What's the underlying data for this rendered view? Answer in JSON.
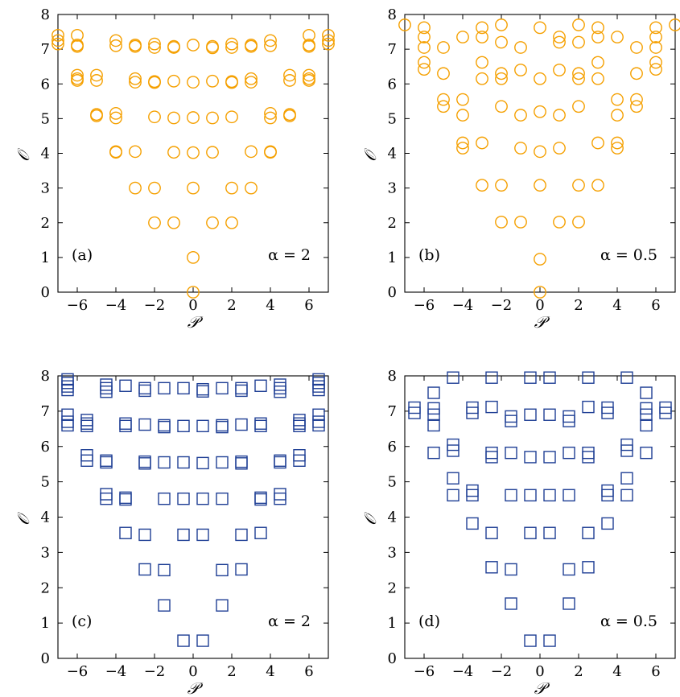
{
  "figure": {
    "colors": {
      "circle": "#f5a000",
      "square": "#1f3f95"
    }
  },
  "chart_data": [
    {
      "id": "a",
      "type": "scatter",
      "marker": "circle",
      "panel_label": "(a)",
      "annotation": "α = 2",
      "xlabel": "𝒫",
      "ylabel": "𝒪",
      "xlim": [
        -7,
        7
      ],
      "ylim": [
        0,
        8
      ],
      "xticks": [
        -6,
        -4,
        -2,
        0,
        2,
        4,
        6
      ],
      "yticks": [
        0,
        1,
        2,
        3,
        4,
        5,
        6,
        7,
        8
      ],
      "points": [
        [
          -7,
          7.4
        ],
        [
          -7,
          7.25
        ],
        [
          -7,
          7.15
        ],
        [
          -6,
          7.4
        ],
        [
          -6,
          7.12
        ],
        [
          -6,
          7.08
        ],
        [
          -4,
          7.25
        ],
        [
          -4,
          7.1
        ],
        [
          -3,
          7.12
        ],
        [
          -3,
          7.08
        ],
        [
          -2,
          7.15
        ],
        [
          -2,
          7.05
        ],
        [
          -1,
          7.08
        ],
        [
          -1,
          7.05
        ],
        [
          0,
          7.12
        ],
        [
          1,
          7.08
        ],
        [
          1,
          7.04
        ],
        [
          2,
          7.15
        ],
        [
          2,
          7.05
        ],
        [
          3,
          7.12
        ],
        [
          3,
          7.08
        ],
        [
          4,
          7.25
        ],
        [
          4,
          7.1
        ],
        [
          6,
          7.4
        ],
        [
          6,
          7.12
        ],
        [
          6,
          7.08
        ],
        [
          7,
          7.4
        ],
        [
          7,
          7.25
        ],
        [
          7,
          7.15
        ],
        [
          -6,
          6.25
        ],
        [
          -6,
          6.15
        ],
        [
          -6,
          6.1
        ],
        [
          -5,
          6.25
        ],
        [
          -5,
          6.1
        ],
        [
          -3,
          6.15
        ],
        [
          -3,
          6.05
        ],
        [
          -2,
          6.07
        ],
        [
          -2,
          6.04
        ],
        [
          -1,
          6.08
        ],
        [
          0,
          6.05
        ],
        [
          1,
          6.08
        ],
        [
          2,
          6.07
        ],
        [
          2,
          6.04
        ],
        [
          3,
          6.15
        ],
        [
          3,
          6.05
        ],
        [
          5,
          6.25
        ],
        [
          5,
          6.1
        ],
        [
          6,
          6.25
        ],
        [
          6,
          6.15
        ],
        [
          6,
          6.1
        ],
        [
          -5,
          5.12
        ],
        [
          -5,
          5.08
        ],
        [
          -4,
          5.15
        ],
        [
          -4,
          5.02
        ],
        [
          -2,
          5.05
        ],
        [
          -1,
          5.02
        ],
        [
          0,
          5.03
        ],
        [
          1,
          5.02
        ],
        [
          2,
          5.05
        ],
        [
          4,
          5.15
        ],
        [
          4,
          5.02
        ],
        [
          5,
          5.12
        ],
        [
          5,
          5.08
        ],
        [
          -4,
          4.05
        ],
        [
          -4,
          4.03
        ],
        [
          -3,
          4.05
        ],
        [
          -1,
          4.03
        ],
        [
          0,
          4.02
        ],
        [
          1,
          4.03
        ],
        [
          3,
          4.05
        ],
        [
          4,
          4.05
        ],
        [
          4,
          4.03
        ],
        [
          -3,
          3.0
        ],
        [
          -2,
          3.0
        ],
        [
          0,
          3.0
        ],
        [
          2,
          3.0
        ],
        [
          3,
          3.0
        ],
        [
          -2,
          2.0
        ],
        [
          -1,
          2.0
        ],
        [
          1,
          2.0
        ],
        [
          2,
          2.0
        ],
        [
          0,
          1.0
        ],
        [
          0,
          0.0
        ]
      ]
    },
    {
      "id": "b",
      "type": "scatter",
      "marker": "circle",
      "panel_label": "(b)",
      "annotation": "α = 0.5",
      "xlabel": "𝒫",
      "ylabel": "𝒪",
      "xlim": [
        -7,
        7
      ],
      "ylim": [
        0,
        8
      ],
      "xticks": [
        -6,
        -4,
        -2,
        0,
        2,
        4,
        6
      ],
      "yticks": [
        0,
        1,
        2,
        3,
        4,
        5,
        6,
        7,
        8
      ],
      "points": [
        [
          -7,
          7.7
        ],
        [
          -6,
          7.62
        ],
        [
          -6,
          7.35
        ],
        [
          -6,
          7.05
        ],
        [
          -6,
          6.62
        ],
        [
          -6,
          6.42
        ],
        [
          -5,
          7.05
        ],
        [
          -5,
          6.3
        ],
        [
          -4,
          7.35
        ],
        [
          -3,
          7.62
        ],
        [
          -3,
          7.35
        ],
        [
          -3,
          6.62
        ],
        [
          -3,
          6.15
        ],
        [
          -2,
          7.7
        ],
        [
          -2,
          7.2
        ],
        [
          -2,
          6.3
        ],
        [
          -2,
          6.15
        ],
        [
          -1,
          7.05
        ],
        [
          -1,
          6.4
        ],
        [
          0,
          7.62
        ],
        [
          0,
          6.15
        ],
        [
          1,
          7.35
        ],
        [
          1,
          7.2
        ],
        [
          1,
          6.4
        ],
        [
          2,
          7.7
        ],
        [
          2,
          7.2
        ],
        [
          2,
          6.3
        ],
        [
          2,
          6.15
        ],
        [
          3,
          7.62
        ],
        [
          3,
          7.35
        ],
        [
          3,
          6.62
        ],
        [
          3,
          6.15
        ],
        [
          4,
          7.35
        ],
        [
          5,
          7.05
        ],
        [
          5,
          6.3
        ],
        [
          6,
          7.62
        ],
        [
          6,
          7.35
        ],
        [
          6,
          7.05
        ],
        [
          6,
          6.62
        ],
        [
          6,
          6.42
        ],
        [
          7,
          7.7
        ],
        [
          -5,
          5.55
        ],
        [
          -5,
          5.35
        ],
        [
          -4,
          5.55
        ],
        [
          -4,
          5.1
        ],
        [
          -2,
          5.35
        ],
        [
          -1,
          5.1
        ],
        [
          0,
          5.2
        ],
        [
          1,
          5.1
        ],
        [
          2,
          5.35
        ],
        [
          4,
          5.55
        ],
        [
          4,
          5.1
        ],
        [
          5,
          5.55
        ],
        [
          5,
          5.35
        ],
        [
          -4,
          4.3
        ],
        [
          -4,
          4.15
        ],
        [
          -3,
          4.3
        ],
        [
          -1,
          4.15
        ],
        [
          0,
          4.05
        ],
        [
          1,
          4.15
        ],
        [
          3,
          4.3
        ],
        [
          4,
          4.3
        ],
        [
          4,
          4.15
        ],
        [
          -3,
          3.08
        ],
        [
          -2,
          3.08
        ],
        [
          0,
          3.08
        ],
        [
          2,
          3.08
        ],
        [
          3,
          3.08
        ],
        [
          -2,
          2.02
        ],
        [
          -1,
          2.02
        ],
        [
          1,
          2.02
        ],
        [
          2,
          2.02
        ],
        [
          0,
          0.95
        ],
        [
          0,
          0.0
        ]
      ]
    },
    {
      "id": "c",
      "type": "scatter",
      "marker": "square",
      "panel_label": "(c)",
      "annotation": "α = 2",
      "xlabel": "𝒫",
      "ylabel": "𝒪",
      "xlim": [
        -7,
        7
      ],
      "ylim": [
        0,
        8
      ],
      "xticks": [
        -6,
        -4,
        -2,
        0,
        2,
        4,
        6
      ],
      "yticks": [
        0,
        1,
        2,
        3,
        4,
        5,
        6,
        7,
        8
      ],
      "points": [
        [
          -6.5,
          7.9
        ],
        [
          -6.5,
          7.8
        ],
        [
          -6.5,
          7.7
        ],
        [
          -6.5,
          7.6
        ],
        [
          -4.5,
          7.75
        ],
        [
          -4.5,
          7.65
        ],
        [
          -4.5,
          7.55
        ],
        [
          -3.5,
          7.72
        ],
        [
          -2.5,
          7.65
        ],
        [
          -2.5,
          7.58
        ],
        [
          -1.5,
          7.65
        ],
        [
          -0.5,
          7.65
        ],
        [
          0.5,
          7.62
        ],
        [
          0.5,
          7.56
        ],
        [
          1.5,
          7.65
        ],
        [
          2.5,
          7.65
        ],
        [
          2.5,
          7.58
        ],
        [
          3.5,
          7.72
        ],
        [
          4.5,
          7.75
        ],
        [
          4.5,
          7.65
        ],
        [
          4.5,
          7.55
        ],
        [
          6.5,
          7.9
        ],
        [
          6.5,
          7.8
        ],
        [
          6.5,
          7.7
        ],
        [
          6.5,
          7.6
        ],
        [
          -6.5,
          6.9
        ],
        [
          -6.5,
          6.7
        ],
        [
          -6.5,
          6.6
        ],
        [
          -5.5,
          6.75
        ],
        [
          -5.5,
          6.65
        ],
        [
          -5.5,
          6.58
        ],
        [
          -3.5,
          6.65
        ],
        [
          -3.5,
          6.58
        ],
        [
          -2.5,
          6.62
        ],
        [
          -1.5,
          6.6
        ],
        [
          -1.5,
          6.55
        ],
        [
          -0.5,
          6.58
        ],
        [
          0.5,
          6.58
        ],
        [
          1.5,
          6.6
        ],
        [
          1.5,
          6.55
        ],
        [
          2.5,
          6.62
        ],
        [
          3.5,
          6.65
        ],
        [
          3.5,
          6.58
        ],
        [
          5.5,
          6.75
        ],
        [
          5.5,
          6.65
        ],
        [
          5.5,
          6.58
        ],
        [
          6.5,
          6.9
        ],
        [
          6.5,
          6.7
        ],
        [
          6.5,
          6.6
        ],
        [
          -5.5,
          5.75
        ],
        [
          -5.5,
          5.6
        ],
        [
          -4.5,
          5.6
        ],
        [
          -4.5,
          5.55
        ],
        [
          -2.5,
          5.57
        ],
        [
          -2.5,
          5.52
        ],
        [
          -1.5,
          5.55
        ],
        [
          -0.5,
          5.55
        ],
        [
          0.5,
          5.53
        ],
        [
          1.5,
          5.55
        ],
        [
          2.5,
          5.57
        ],
        [
          2.5,
          5.52
        ],
        [
          4.5,
          5.6
        ],
        [
          4.5,
          5.55
        ],
        [
          5.5,
          5.75
        ],
        [
          5.5,
          5.6
        ],
        [
          -4.5,
          4.65
        ],
        [
          -4.5,
          4.52
        ],
        [
          -3.5,
          4.55
        ],
        [
          -3.5,
          4.5
        ],
        [
          -1.5,
          4.52
        ],
        [
          -0.5,
          4.52
        ],
        [
          0.5,
          4.52
        ],
        [
          1.5,
          4.52
        ],
        [
          3.5,
          4.55
        ],
        [
          3.5,
          4.5
        ],
        [
          4.5,
          4.65
        ],
        [
          4.5,
          4.52
        ],
        [
          -3.5,
          3.55
        ],
        [
          -2.5,
          3.5
        ],
        [
          -0.5,
          3.5
        ],
        [
          0.5,
          3.5
        ],
        [
          2.5,
          3.5
        ],
        [
          3.5,
          3.55
        ],
        [
          -2.5,
          2.52
        ],
        [
          -1.5,
          2.5
        ],
        [
          1.5,
          2.5
        ],
        [
          2.5,
          2.52
        ],
        [
          -1.5,
          1.5
        ],
        [
          1.5,
          1.5
        ],
        [
          -0.5,
          0.5
        ],
        [
          0.5,
          0.5
        ]
      ]
    },
    {
      "id": "d",
      "type": "scatter",
      "marker": "square",
      "panel_label": "(d)",
      "annotation": "α = 0.5",
      "xlabel": "𝒫",
      "ylabel": "𝒪",
      "xlim": [
        -7,
        7
      ],
      "ylim": [
        0,
        8
      ],
      "xticks": [
        -6,
        -4,
        -2,
        0,
        2,
        4,
        6
      ],
      "yticks": [
        0,
        1,
        2,
        3,
        4,
        5,
        6,
        7,
        8
      ],
      "points": [
        [
          -4.5,
          7.95
        ],
        [
          -2.5,
          7.95
        ],
        [
          -0.5,
          7.95
        ],
        [
          0.5,
          7.95
        ],
        [
          2.5,
          7.95
        ],
        [
          4.5,
          7.95
        ],
        [
          -6.5,
          7.1
        ],
        [
          -6.5,
          6.95
        ],
        [
          -5.5,
          7.52
        ],
        [
          -5.5,
          7.08
        ],
        [
          -5.5,
          6.9
        ],
        [
          -5.5,
          6.6
        ],
        [
          -3.5,
          7.1
        ],
        [
          -3.5,
          6.95
        ],
        [
          -2.5,
          7.12
        ],
        [
          -1.5,
          6.85
        ],
        [
          -1.5,
          6.72
        ],
        [
          -0.5,
          6.9
        ],
        [
          0.5,
          6.9
        ],
        [
          1.5,
          6.85
        ],
        [
          1.5,
          6.72
        ],
        [
          2.5,
          7.12
        ],
        [
          3.5,
          7.1
        ],
        [
          3.5,
          6.95
        ],
        [
          5.5,
          7.52
        ],
        [
          5.5,
          7.08
        ],
        [
          5.5,
          6.9
        ],
        [
          5.5,
          6.6
        ],
        [
          6.5,
          7.1
        ],
        [
          6.5,
          6.95
        ],
        [
          -5.5,
          5.82
        ],
        [
          -4.5,
          6.05
        ],
        [
          -4.5,
          5.88
        ],
        [
          -2.5,
          5.82
        ],
        [
          -2.5,
          5.7
        ],
        [
          -1.5,
          5.82
        ],
        [
          -0.5,
          5.7
        ],
        [
          0.5,
          5.7
        ],
        [
          1.5,
          5.82
        ],
        [
          2.5,
          5.82
        ],
        [
          2.5,
          5.7
        ],
        [
          4.5,
          6.05
        ],
        [
          4.5,
          5.88
        ],
        [
          5.5,
          5.82
        ],
        [
          -4.5,
          5.1
        ],
        [
          -4.5,
          4.62
        ],
        [
          -3.5,
          4.75
        ],
        [
          -3.5,
          4.62
        ],
        [
          -1.5,
          4.62
        ],
        [
          -0.5,
          4.62
        ],
        [
          0.5,
          4.62
        ],
        [
          1.5,
          4.62
        ],
        [
          3.5,
          4.75
        ],
        [
          3.5,
          4.62
        ],
        [
          4.5,
          5.1
        ],
        [
          4.5,
          4.62
        ],
        [
          -3.5,
          3.82
        ],
        [
          -2.5,
          3.55
        ],
        [
          -0.5,
          3.55
        ],
        [
          0.5,
          3.55
        ],
        [
          2.5,
          3.55
        ],
        [
          3.5,
          3.82
        ],
        [
          -2.5,
          2.58
        ],
        [
          -1.5,
          2.52
        ],
        [
          1.5,
          2.52
        ],
        [
          2.5,
          2.58
        ],
        [
          -1.5,
          1.55
        ],
        [
          1.5,
          1.55
        ],
        [
          -0.5,
          0.5
        ],
        [
          0.5,
          0.5
        ]
      ]
    }
  ]
}
